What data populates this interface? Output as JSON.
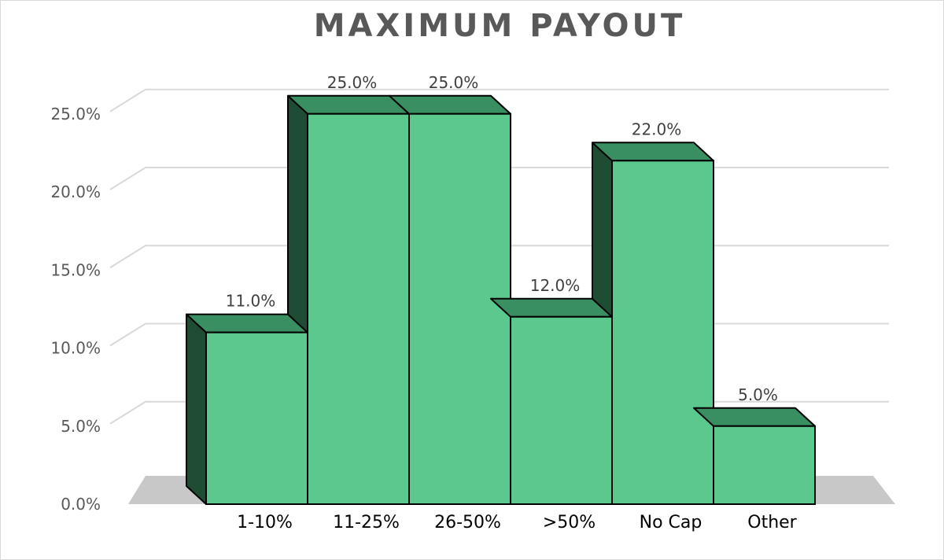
{
  "chart_data": {
    "type": "bar",
    "title": "MAXIMUM PAYOUT",
    "categories": [
      "1-10%",
      "11-25%",
      "26-50%",
      ">50%",
      "No Cap",
      "Other"
    ],
    "values": [
      11.0,
      25.0,
      25.0,
      12.0,
      22.0,
      5.0
    ],
    "data_labels": [
      "11.0%",
      "25.0%",
      "25.0%",
      "12.0%",
      "22.0%",
      "5.0%"
    ],
    "y_ticks": [
      "0.0%",
      "5.0%",
      "10.0%",
      "15.0%",
      "20.0%",
      "25.0%"
    ],
    "y_tick_values": [
      0,
      5,
      10,
      15,
      20,
      25
    ],
    "ylim": [
      0,
      25
    ],
    "xlabel": "",
    "ylabel": "",
    "grid": true,
    "legend": "none",
    "colors": {
      "bar_front": "#5bc98e",
      "bar_top": "#3a8f62",
      "bar_side": "#1f4d34",
      "floor": "#c8c8c8",
      "grid": "#d9d9d9"
    }
  }
}
